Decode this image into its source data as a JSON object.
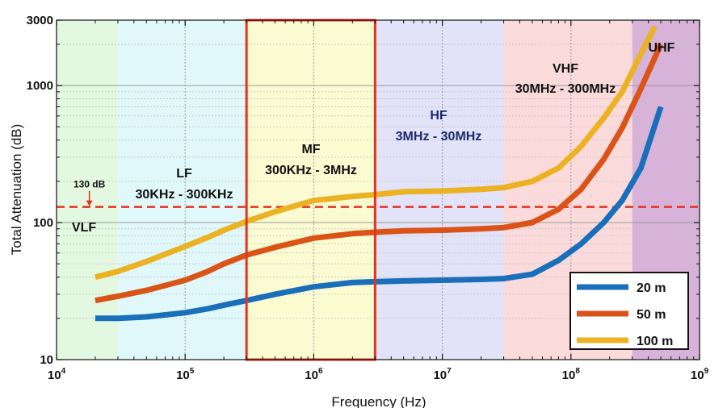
{
  "chart_data": {
    "type": "line",
    "xlabel": "Frequency (Hz)",
    "ylabel": "Total Attenuation (dB)",
    "xscale": "log",
    "yscale": "log",
    "xlim": [
      10000,
      1000000000
    ],
    "ylim": [
      10,
      3000
    ],
    "x_ticks": [
      {
        "value": 10000,
        "base": "10",
        "exp": "4"
      },
      {
        "value": 100000,
        "base": "10",
        "exp": "5"
      },
      {
        "value": 1000000,
        "base": "10",
        "exp": "6"
      },
      {
        "value": 10000000,
        "base": "10",
        "exp": "7"
      },
      {
        "value": 100000000,
        "base": "10",
        "exp": "8"
      },
      {
        "value": 1000000000,
        "base": "10",
        "exp": "9"
      }
    ],
    "y_ticks": [
      {
        "value": 10,
        "label": "10"
      },
      {
        "value": 100,
        "label": "100"
      },
      {
        "value": 1000,
        "label": "1000"
      },
      {
        "value": 3000,
        "label": "3000"
      }
    ],
    "grid": true,
    "bands": [
      {
        "name": "VLF",
        "range": "",
        "from": 10000,
        "to": 30000,
        "color": "#e3f8e0"
      },
      {
        "name": "LF",
        "range": "30KHz - 300KHz",
        "from": 30000,
        "to": 300000,
        "color": "#e0f8fa"
      },
      {
        "name": "MF",
        "range": "300KHz - 3MHz",
        "from": 300000,
        "to": 3000000,
        "color": "#fbfbd2"
      },
      {
        "name": "HF",
        "range": "3MHz - 30MHz",
        "from": 3000000,
        "to": 30000000,
        "color": "#e2e2f8"
      },
      {
        "name": "VHF",
        "range": "30MHz - 300MHz",
        "from": 30000000,
        "to": 300000000,
        "color": "#fadada"
      },
      {
        "name": "UHF",
        "range": "",
        "from": 300000000,
        "to": 1000000000,
        "color": "#d7b2d9"
      }
    ],
    "highlight_band": "MF",
    "highlight_color": "#e8321e",
    "threshold": {
      "value": 130,
      "label": "130 dB",
      "color": "#e5321f"
    },
    "legend_position": "bottom-right",
    "series": [
      {
        "name": "20 m",
        "color": "#1a6fba",
        "x": [
          20000,
          30000,
          50000,
          100000,
          150000,
          200000,
          300000,
          500000,
          1000000,
          2000000,
          3000000,
          5000000,
          10000000,
          20000000,
          30000000,
          50000000,
          80000000,
          120000000,
          180000000,
          250000000,
          350000000,
          500000000
        ],
        "values": [
          20,
          20,
          20.5,
          22,
          23.5,
          25,
          27,
          30,
          34,
          36.5,
          37,
          37.5,
          38,
          38.5,
          39,
          42,
          53,
          70,
          100,
          145,
          250,
          700
        ]
      },
      {
        "name": "50 m",
        "color": "#da5418",
        "x": [
          20000,
          30000,
          50000,
          100000,
          150000,
          200000,
          300000,
          500000,
          1000000,
          2000000,
          3000000,
          5000000,
          10000000,
          20000000,
          30000000,
          50000000,
          80000000,
          120000000,
          180000000,
          250000000,
          350000000,
          500000000
        ],
        "values": [
          27,
          29,
          32,
          38,
          44,
          50,
          58,
          66,
          77,
          83,
          85,
          87,
          88,
          90,
          92,
          100,
          125,
          175,
          290,
          490,
          950,
          2000
        ]
      },
      {
        "name": "100 m",
        "color": "#ebb223",
        "x": [
          20000,
          30000,
          50000,
          100000,
          150000,
          200000,
          300000,
          500000,
          1000000,
          2000000,
          3000000,
          5000000,
          10000000,
          20000000,
          30000000,
          50000000,
          80000000,
          120000000,
          180000000,
          250000000,
          350000000,
          450000000
        ],
        "values": [
          40,
          44,
          52,
          67,
          78,
          88,
          102,
          120,
          145,
          155,
          160,
          168,
          170,
          175,
          180,
          200,
          250,
          360,
          580,
          900,
          1700,
          2700
        ]
      }
    ]
  }
}
